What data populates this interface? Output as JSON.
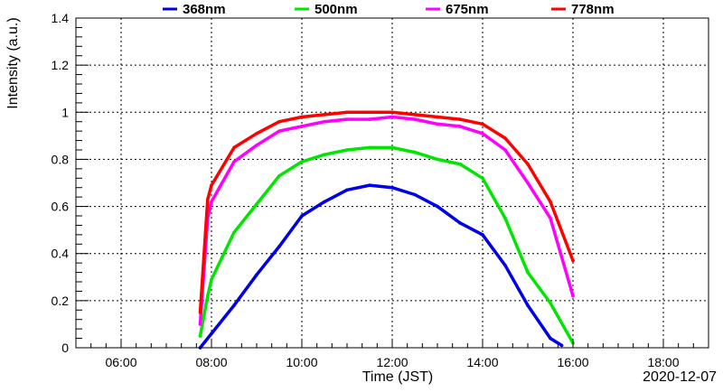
{
  "chart_data": {
    "type": "line",
    "xlabel": "Time (JST)",
    "ylabel": "Intensity (a.u.)",
    "date_label": "2020-12-07",
    "x_ticks": [
      "06:00",
      "08:00",
      "10:00",
      "12:00",
      "14:00",
      "16:00",
      "18:00"
    ],
    "y_ticks": [
      "0",
      "0.2",
      "0.4",
      "0.6",
      "0.8",
      "1",
      "1.2",
      "1.4"
    ],
    "xlim": [
      "05:00",
      "19:00"
    ],
    "ylim": [
      0,
      1.4
    ],
    "grid": true,
    "legend_position": "top",
    "series": [
      {
        "name": "368nm",
        "color": "#0000e6",
        "x": [
          "07:45",
          "08:00",
          "08:30",
          "09:00",
          "09:30",
          "10:00",
          "10:30",
          "11:00",
          "11:30",
          "12:00",
          "12:30",
          "13:00",
          "13:30",
          "14:00",
          "14:30",
          "15:00",
          "15:30",
          "15:45"
        ],
        "y": [
          0.0,
          0.06,
          0.18,
          0.31,
          0.43,
          0.56,
          0.62,
          0.67,
          0.69,
          0.68,
          0.65,
          0.6,
          0.53,
          0.48,
          0.35,
          0.18,
          0.04,
          0.01
        ]
      },
      {
        "name": "500nm",
        "color": "#00e600",
        "x": [
          "07:45",
          "07:55",
          "08:00",
          "08:30",
          "09:00",
          "09:30",
          "10:00",
          "10:30",
          "11:00",
          "11:30",
          "12:00",
          "12:30",
          "13:00",
          "13:30",
          "14:00",
          "14:30",
          "15:00",
          "15:30",
          "16:00"
        ],
        "y": [
          0.05,
          0.22,
          0.29,
          0.49,
          0.61,
          0.73,
          0.79,
          0.82,
          0.84,
          0.85,
          0.85,
          0.83,
          0.8,
          0.78,
          0.72,
          0.55,
          0.32,
          0.19,
          0.02
        ]
      },
      {
        "name": "675nm",
        "color": "#ff00ff",
        "x": [
          "07:45",
          "07:55",
          "08:00",
          "08:30",
          "09:00",
          "09:30",
          "10:00",
          "10:30",
          "11:00",
          "11:30",
          "12:00",
          "12:30",
          "13:00",
          "13:30",
          "14:00",
          "14:30",
          "15:00",
          "15:30",
          "16:00"
        ],
        "y": [
          0.1,
          0.55,
          0.62,
          0.79,
          0.86,
          0.92,
          0.94,
          0.96,
          0.97,
          0.97,
          0.98,
          0.97,
          0.95,
          0.94,
          0.91,
          0.84,
          0.7,
          0.55,
          0.22
        ]
      },
      {
        "name": "778nm",
        "color": "#ff0000",
        "x": [
          "07:45",
          "07:55",
          "08:00",
          "08:30",
          "09:00",
          "09:30",
          "10:00",
          "10:30",
          "11:00",
          "11:30",
          "12:00",
          "12:30",
          "13:00",
          "13:30",
          "14:00",
          "14:30",
          "15:00",
          "15:30",
          "16:00"
        ],
        "y": [
          0.15,
          0.63,
          0.69,
          0.85,
          0.91,
          0.96,
          0.98,
          0.99,
          1.0,
          1.0,
          1.0,
          0.99,
          0.98,
          0.97,
          0.95,
          0.89,
          0.78,
          0.62,
          0.37
        ]
      }
    ]
  }
}
